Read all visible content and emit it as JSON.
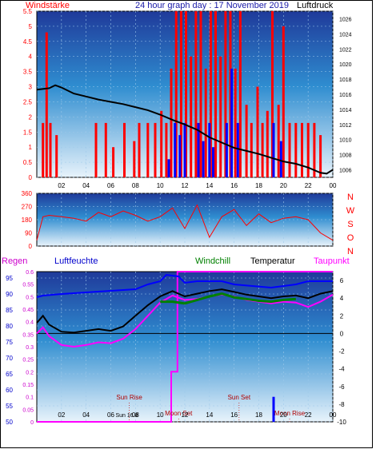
{
  "page": {
    "title": "24 hour graph day : 17 November 2019",
    "colors": {
      "frame_border": "#000000",
      "plot_top": "#1f3a9a",
      "plot_bottom": "#e8f3fb"
    }
  },
  "chart_data": [
    {
      "id": "wind_pressure",
      "type": "bar",
      "left_label": "Windstärke",
      "right_label": "Luftdruck",
      "x_ticks": [
        "02",
        "04",
        "06",
        "08",
        "10",
        "12",
        "14",
        "16",
        "18",
        "20",
        "22",
        "00"
      ],
      "y_left_ticks": [
        "0",
        "0.5",
        "1",
        "1.5",
        "2",
        "2.5",
        "3",
        "3.5",
        "4",
        "4.5",
        "5",
        "5.5"
      ],
      "y_right_ticks": [
        "1006",
        "1008",
        "1010",
        "1012",
        "1014",
        "1016",
        "1018",
        "1020",
        "1022",
        "1024",
        "1026"
      ],
      "ylim_left": [
        0,
        5.5
      ],
      "ylim_right": [
        1005,
        1027
      ],
      "colors": {
        "wind": "#ff0000",
        "gust": "#0000ff",
        "pressure": "#000000"
      },
      "pressure_series": [
        {
          "h": 0,
          "v": 1016.6
        },
        {
          "h": 1,
          "v": 1016.8
        },
        {
          "h": 1.5,
          "v": 1017.2
        },
        {
          "h": 2,
          "v": 1016.9
        },
        {
          "h": 3,
          "v": 1016.1
        },
        {
          "h": 4,
          "v": 1015.7
        },
        {
          "h": 5,
          "v": 1015.3
        },
        {
          "h": 6,
          "v": 1015.0
        },
        {
          "h": 7,
          "v": 1014.7
        },
        {
          "h": 8,
          "v": 1014.3
        },
        {
          "h": 9,
          "v": 1013.9
        },
        {
          "h": 10,
          "v": 1013.3
        },
        {
          "h": 11,
          "v": 1012.6
        },
        {
          "h": 12,
          "v": 1012.0
        },
        {
          "h": 13,
          "v": 1011.3
        },
        {
          "h": 14,
          "v": 1010.3
        },
        {
          "h": 15,
          "v": 1009.6
        },
        {
          "h": 16,
          "v": 1008.9
        },
        {
          "h": 17,
          "v": 1008.5
        },
        {
          "h": 18,
          "v": 1008.1
        },
        {
          "h": 19,
          "v": 1007.6
        },
        {
          "h": 20,
          "v": 1007.1
        },
        {
          "h": 21,
          "v": 1006.8
        },
        {
          "h": 22,
          "v": 1006.3
        },
        {
          "h": 23,
          "v": 1005.6
        },
        {
          "h": 23.5,
          "v": 1005.5
        },
        {
          "h": 24,
          "v": 1006.0
        }
      ],
      "wind_bars": [
        {
          "h": 0.5,
          "v": 1.8
        },
        {
          "h": 0.8,
          "v": 4.8
        },
        {
          "h": 1.1,
          "v": 1.8
        },
        {
          "h": 1.6,
          "v": 1.4
        },
        {
          "h": 4.8,
          "v": 1.8
        },
        {
          "h": 5.6,
          "v": 1.8
        },
        {
          "h": 6.2,
          "v": 1.0
        },
        {
          "h": 7.1,
          "v": 1.8
        },
        {
          "h": 7.9,
          "v": 1.2
        },
        {
          "h": 8.3,
          "v": 1.8
        },
        {
          "h": 9.0,
          "v": 1.8
        },
        {
          "h": 9.6,
          "v": 1.8
        },
        {
          "h": 10.1,
          "v": 2.2
        },
        {
          "h": 10.5,
          "v": 1.8
        },
        {
          "h": 10.9,
          "v": 3.6
        },
        {
          "h": 11.3,
          "v": 5.5
        },
        {
          "h": 11.7,
          "v": 5.5
        },
        {
          "h": 12.1,
          "v": 5.5
        },
        {
          "h": 12.5,
          "v": 4.0
        },
        {
          "h": 12.9,
          "v": 5.5
        },
        {
          "h": 13.3,
          "v": 5.5
        },
        {
          "h": 13.7,
          "v": 3.6
        },
        {
          "h": 14.1,
          "v": 5.5
        },
        {
          "h": 14.5,
          "v": 5.5
        },
        {
          "h": 14.9,
          "v": 4.0
        },
        {
          "h": 15.3,
          "v": 5.5
        },
        {
          "h": 15.7,
          "v": 5.5
        },
        {
          "h": 16.1,
          "v": 3.6
        },
        {
          "h": 16.5,
          "v": 5.5
        },
        {
          "h": 17.0,
          "v": 2.4
        },
        {
          "h": 17.4,
          "v": 1.8
        },
        {
          "h": 17.9,
          "v": 3.0
        },
        {
          "h": 18.3,
          "v": 1.8
        },
        {
          "h": 18.7,
          "v": 2.2
        },
        {
          "h": 19.1,
          "v": 5.5
        },
        {
          "h": 19.6,
          "v": 2.4
        },
        {
          "h": 20.0,
          "v": 5.0
        },
        {
          "h": 20.5,
          "v": 1.8
        },
        {
          "h": 21.0,
          "v": 1.8
        },
        {
          "h": 21.5,
          "v": 1.8
        },
        {
          "h": 22.0,
          "v": 1.8
        },
        {
          "h": 22.5,
          "v": 1.8
        },
        {
          "h": 23.0,
          "v": 1.4
        }
      ],
      "gust_bars": [
        {
          "h": 10.7,
          "v": 0.6
        },
        {
          "h": 11.2,
          "v": 1.8
        },
        {
          "h": 11.6,
          "v": 1.4
        },
        {
          "h": 12.0,
          "v": 1.8
        },
        {
          "h": 13.1,
          "v": 1.8
        },
        {
          "h": 13.5,
          "v": 1.2
        },
        {
          "h": 14.0,
          "v": 1.8
        },
        {
          "h": 14.3,
          "v": 1.0
        },
        {
          "h": 15.4,
          "v": 1.8
        },
        {
          "h": 15.8,
          "v": 3.6
        },
        {
          "h": 16.3,
          "v": 1.8
        },
        {
          "h": 19.2,
          "v": 1.8
        },
        {
          "h": 19.8,
          "v": 1.2
        }
      ]
    },
    {
      "id": "wind_direction",
      "type": "line",
      "y_left_ticks": [
        "0",
        "90",
        "180",
        "270",
        "360"
      ],
      "ylim": [
        0,
        360
      ],
      "compass_labels": [
        "N",
        "W",
        "S",
        "O",
        "N"
      ],
      "color": "#ff0000",
      "series": [
        {
          "h": 0,
          "v": 40
        },
        {
          "h": 0.5,
          "v": 200
        },
        {
          "h": 1,
          "v": 210
        },
        {
          "h": 2,
          "v": 200
        },
        {
          "h": 3,
          "v": 190
        },
        {
          "h": 4,
          "v": 170
        },
        {
          "h": 5,
          "v": 230
        },
        {
          "h": 6,
          "v": 200
        },
        {
          "h": 7,
          "v": 240
        },
        {
          "h": 8,
          "v": 210
        },
        {
          "h": 9,
          "v": 170
        },
        {
          "h": 10,
          "v": 200
        },
        {
          "h": 11,
          "v": 260
        },
        {
          "h": 12,
          "v": 120
        },
        {
          "h": 13,
          "v": 280
        },
        {
          "h": 14,
          "v": 60
        },
        {
          "h": 15,
          "v": 200
        },
        {
          "h": 16,
          "v": 250
        },
        {
          "h": 17,
          "v": 140
        },
        {
          "h": 18,
          "v": 220
        },
        {
          "h": 19,
          "v": 160
        },
        {
          "h": 20,
          "v": 190
        },
        {
          "h": 21,
          "v": 200
        },
        {
          "h": 22,
          "v": 180
        },
        {
          "h": 23,
          "v": 90
        },
        {
          "h": 24,
          "v": 40
        }
      ]
    },
    {
      "id": "temperature_humidity",
      "type": "line",
      "header_labels": {
        "rain": "Regen",
        "humidity": "Luftfeuchte",
        "windchill": "Windchill",
        "temperature": "Temperatur",
        "dewpoint": "Taupunkt"
      },
      "y_humidity_ticks": [
        "50",
        "55",
        "60",
        "65",
        "70",
        "75",
        "80",
        "85",
        "90",
        "95"
      ],
      "y_rain_ticks": [
        "0",
        "0.05",
        "0.1",
        "0.15",
        "0.2",
        "0.25",
        "0.3",
        "0.35",
        "0.4",
        "0.45",
        "0.5",
        "0.55",
        "0.6"
      ],
      "y_temp_ticks": [
        "-10",
        "-8",
        "-6",
        "-4",
        "-2",
        "0",
        "2",
        "4",
        "6"
      ],
      "ylim_humidity": [
        50,
        97
      ],
      "ylim_rain": [
        0,
        0.6
      ],
      "ylim_temp": [
        -10,
        7
      ],
      "x_ticks": [
        "02",
        "04",
        "06",
        "08",
        "10",
        "12",
        "14",
        "16",
        "18",
        "20",
        "22",
        "00"
      ],
      "annotations": [
        {
          "text": "Sun Rise",
          "h": 7.5
        },
        {
          "text": "Moon Set",
          "h": 11.5
        },
        {
          "text": "Sun Set",
          "h": 16.4
        },
        {
          "text": "Moon Rise",
          "h": 20.5
        }
      ],
      "x_inline_label": "Sun 16.8",
      "colors": {
        "humidity": "#0000ff",
        "temperature": "#000000",
        "windchill": "#008000",
        "dewpoint": "#ff00ff",
        "rain": "#ff00ff",
        "zero_line": "#000000"
      },
      "humidity_series": [
        {
          "h": 0,
          "v": 89
        },
        {
          "h": 0.5,
          "v": 89.5
        },
        {
          "h": 2,
          "v": 90
        },
        {
          "h": 6,
          "v": 91
        },
        {
          "h": 8,
          "v": 91.5
        },
        {
          "h": 9,
          "v": 93
        },
        {
          "h": 10,
          "v": 94
        },
        {
          "h": 10.5,
          "v": 96
        },
        {
          "h": 11.5,
          "v": 95.5
        },
        {
          "h": 12,
          "v": 93.5
        },
        {
          "h": 13,
          "v": 94
        },
        {
          "h": 15,
          "v": 94
        },
        {
          "h": 16,
          "v": 93
        },
        {
          "h": 19,
          "v": 92
        },
        {
          "h": 21,
          "v": 93
        },
        {
          "h": 22,
          "v": 94
        },
        {
          "h": 23,
          "v": 94
        },
        {
          "h": 24,
          "v": 94
        }
      ],
      "temperature_series": [
        {
          "h": 0,
          "v": 1.2
        },
        {
          "h": 0.5,
          "v": 2.0
        },
        {
          "h": 1,
          "v": 1.0
        },
        {
          "h": 2,
          "v": 0.2
        },
        {
          "h": 3,
          "v": 0.1
        },
        {
          "h": 4,
          "v": 0.3
        },
        {
          "h": 5,
          "v": 0.5
        },
        {
          "h": 6,
          "v": 0.3
        },
        {
          "h": 7,
          "v": 0.8
        },
        {
          "h": 8,
          "v": 2.0
        },
        {
          "h": 9,
          "v": 3.2
        },
        {
          "h": 10,
          "v": 4.2
        },
        {
          "h": 11,
          "v": 4.8
        },
        {
          "h": 12,
          "v": 4.2
        },
        {
          "h": 13,
          "v": 4.5
        },
        {
          "h": 14,
          "v": 4.8
        },
        {
          "h": 15,
          "v": 5.0
        },
        {
          "h": 16,
          "v": 4.7
        },
        {
          "h": 17,
          "v": 4.4
        },
        {
          "h": 18,
          "v": 4.2
        },
        {
          "h": 19,
          "v": 4.0
        },
        {
          "h": 20,
          "v": 4.2
        },
        {
          "h": 21,
          "v": 4.3
        },
        {
          "h": 22,
          "v": 4.0
        },
        {
          "h": 23,
          "v": 4.5
        },
        {
          "h": 24,
          "v": 4.8
        }
      ],
      "windchill_series": [
        {
          "h": 10,
          "v": 3.6
        },
        {
          "h": 11,
          "v": 3.6
        },
        {
          "h": 12,
          "v": 3.4
        },
        {
          "h": 13,
          "v": 3.8
        },
        {
          "h": 14,
          "v": 4.2
        },
        {
          "h": 15,
          "v": 4.5
        },
        {
          "h": 16,
          "v": 4.1
        },
        {
          "h": 17,
          "v": 3.9
        },
        {
          "h": 18,
          "v": 3.7
        },
        {
          "h": 19,
          "v": 3.6
        },
        {
          "h": 20,
          "v": 3.8
        },
        {
          "h": 21,
          "v": 3.9
        }
      ],
      "dewpoint_series": [
        {
          "h": 0,
          "v": 0.0
        },
        {
          "h": 0.5,
          "v": 0.7
        },
        {
          "h": 1,
          "v": -0.3
        },
        {
          "h": 2,
          "v": -1.3
        },
        {
          "h": 3,
          "v": -1.5
        },
        {
          "h": 4,
          "v": -1.3
        },
        {
          "h": 5,
          "v": -1.0
        },
        {
          "h": 6,
          "v": -1.1
        },
        {
          "h": 7,
          "v": -0.6
        },
        {
          "h": 8,
          "v": 0.5
        },
        {
          "h": 9,
          "v": 2.0
        },
        {
          "h": 10,
          "v": 3.5
        },
        {
          "h": 11,
          "v": 4.3
        },
        {
          "h": 12,
          "v": 3.8
        },
        {
          "h": 13,
          "v": 3.9
        },
        {
          "h": 14,
          "v": 4.2
        },
        {
          "h": 15,
          "v": 4.4
        },
        {
          "h": 16,
          "v": 4.2
        },
        {
          "h": 17,
          "v": 3.8
        },
        {
          "h": 18,
          "v": 3.6
        },
        {
          "h": 19,
          "v": 3.4
        },
        {
          "h": 20,
          "v": 3.6
        },
        {
          "h": 21,
          "v": 3.5
        },
        {
          "h": 22,
          "v": 3.0
        },
        {
          "h": 23,
          "v": 3.6
        },
        {
          "h": 24,
          "v": 4.4
        }
      ],
      "rain_series": [
        {
          "h": 0,
          "v": 0
        },
        {
          "h": 10.9,
          "v": 0
        },
        {
          "h": 10.9,
          "v": 0.2
        },
        {
          "h": 11.4,
          "v": 0.2
        },
        {
          "h": 11.4,
          "v": 0.6
        },
        {
          "h": 24,
          "v": 0.6
        }
      ],
      "rain_rate_bar": {
        "h": 19.2,
        "v": 0.1
      }
    }
  ]
}
